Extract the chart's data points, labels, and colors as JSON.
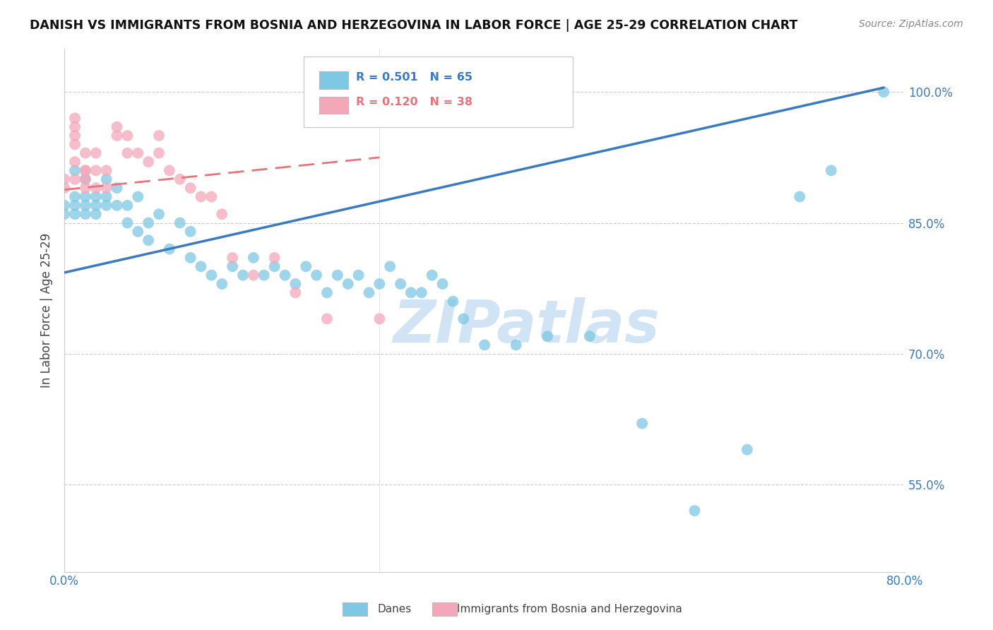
{
  "title": "DANISH VS IMMIGRANTS FROM BOSNIA AND HERZEGOVINA IN LABOR FORCE | AGE 25-29 CORRELATION CHART",
  "source": "Source: ZipAtlas.com",
  "ylabel": "In Labor Force | Age 25-29",
  "xlim": [
    0.0,
    0.8
  ],
  "ylim": [
    0.45,
    1.05
  ],
  "ytick_positions": [
    0.55,
    0.7,
    0.85,
    1.0
  ],
  "ytick_labels": [
    "55.0%",
    "70.0%",
    "85.0%",
    "100.0%"
  ],
  "xtick_positions": [
    0.0,
    0.1,
    0.2,
    0.3,
    0.4,
    0.5,
    0.6,
    0.7,
    0.8
  ],
  "xtick_labels": [
    "0.0%",
    "",
    "",
    "",
    "",
    "",
    "",
    "",
    "80.0%"
  ],
  "blue_color": "#7ec8e3",
  "pink_color": "#f4a7b9",
  "blue_line_color": "#3a7abf",
  "pink_line_color": "#e8737a",
  "legend_blue_R": "R = 0.501",
  "legend_blue_N": "N = 65",
  "legend_pink_R": "R = 0.120",
  "legend_pink_N": "N = 38",
  "blue_line_x0": 0.0,
  "blue_line_y0": 0.793,
  "blue_line_x1": 0.78,
  "blue_line_y1": 1.005,
  "pink_line_x0": 0.0,
  "pink_line_y0": 0.888,
  "pink_line_x1": 0.3,
  "pink_line_y1": 0.925,
  "watermark": "ZIPatlas",
  "watermark_color": "#d0e4f5",
  "blue_x": [
    0.0,
    0.0,
    0.01,
    0.01,
    0.01,
    0.01,
    0.02,
    0.02,
    0.02,
    0.02,
    0.03,
    0.03,
    0.03,
    0.04,
    0.04,
    0.04,
    0.05,
    0.05,
    0.06,
    0.06,
    0.07,
    0.07,
    0.08,
    0.08,
    0.09,
    0.1,
    0.11,
    0.12,
    0.12,
    0.13,
    0.14,
    0.15,
    0.16,
    0.17,
    0.18,
    0.19,
    0.2,
    0.21,
    0.22,
    0.23,
    0.24,
    0.25,
    0.26,
    0.27,
    0.28,
    0.29,
    0.3,
    0.31,
    0.32,
    0.33,
    0.34,
    0.35,
    0.36,
    0.37,
    0.38,
    0.4,
    0.43,
    0.46,
    0.5,
    0.55,
    0.6,
    0.65,
    0.7,
    0.73,
    0.78
  ],
  "blue_y": [
    0.87,
    0.86,
    0.91,
    0.88,
    0.87,
    0.86,
    0.88,
    0.87,
    0.9,
    0.86,
    0.88,
    0.87,
    0.86,
    0.9,
    0.88,
    0.87,
    0.87,
    0.89,
    0.87,
    0.85,
    0.88,
    0.84,
    0.83,
    0.85,
    0.86,
    0.82,
    0.85,
    0.81,
    0.84,
    0.8,
    0.79,
    0.78,
    0.8,
    0.79,
    0.81,
    0.79,
    0.8,
    0.79,
    0.78,
    0.8,
    0.79,
    0.77,
    0.79,
    0.78,
    0.79,
    0.77,
    0.78,
    0.8,
    0.78,
    0.77,
    0.77,
    0.79,
    0.78,
    0.76,
    0.74,
    0.71,
    0.71,
    0.72,
    0.72,
    0.62,
    0.52,
    0.59,
    0.88,
    0.91,
    1.0
  ],
  "pink_x": [
    0.0,
    0.0,
    0.01,
    0.01,
    0.01,
    0.01,
    0.01,
    0.01,
    0.02,
    0.02,
    0.02,
    0.02,
    0.02,
    0.03,
    0.03,
    0.03,
    0.04,
    0.04,
    0.05,
    0.05,
    0.06,
    0.06,
    0.07,
    0.08,
    0.09,
    0.09,
    0.1,
    0.11,
    0.12,
    0.13,
    0.14,
    0.15,
    0.16,
    0.18,
    0.2,
    0.22,
    0.25,
    0.3
  ],
  "pink_y": [
    0.9,
    0.89,
    0.97,
    0.96,
    0.95,
    0.94,
    0.92,
    0.9,
    0.91,
    0.9,
    0.93,
    0.91,
    0.89,
    0.91,
    0.93,
    0.89,
    0.89,
    0.91,
    0.95,
    0.96,
    0.95,
    0.93,
    0.93,
    0.92,
    0.95,
    0.93,
    0.91,
    0.9,
    0.89,
    0.88,
    0.88,
    0.86,
    0.81,
    0.79,
    0.81,
    0.77,
    0.74,
    0.74
  ]
}
